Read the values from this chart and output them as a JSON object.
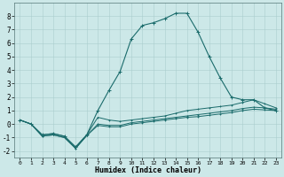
{
  "xlabel": "Humidex (Indice chaleur)",
  "x_values": [
    0,
    1,
    2,
    3,
    4,
    5,
    6,
    7,
    8,
    9,
    10,
    11,
    12,
    13,
    14,
    15,
    16,
    17,
    18,
    19,
    20,
    21,
    22,
    23
  ],
  "line_main": [
    0.3,
    0.0,
    -0.8,
    -0.7,
    -0.9,
    -1.7,
    -0.8,
    1.0,
    2.5,
    3.9,
    6.3,
    7.3,
    7.5,
    7.8,
    8.2,
    8.2,
    6.8,
    5.0,
    3.4,
    2.0,
    1.8,
    1.8,
    1.2,
    1.0
  ],
  "line_upper": [
    0.3,
    0.0,
    -0.8,
    -0.7,
    -0.9,
    -1.7,
    -0.8,
    0.5,
    0.3,
    0.2,
    0.3,
    0.4,
    0.5,
    0.6,
    0.8,
    1.0,
    1.1,
    1.2,
    1.3,
    1.4,
    1.6,
    1.8,
    1.5,
    1.2
  ],
  "line_mid1": [
    0.3,
    0.0,
    -0.9,
    -0.8,
    -1.0,
    -1.8,
    -0.85,
    0.0,
    -0.1,
    -0.1,
    0.1,
    0.2,
    0.3,
    0.4,
    0.5,
    0.6,
    0.7,
    0.8,
    0.9,
    1.0,
    1.15,
    1.25,
    1.2,
    1.1
  ],
  "line_mid2": [
    0.3,
    0.0,
    -0.9,
    -0.8,
    -1.0,
    -1.8,
    -0.85,
    -0.1,
    -0.2,
    -0.2,
    0.0,
    0.1,
    0.2,
    0.3,
    0.4,
    0.5,
    0.55,
    0.65,
    0.75,
    0.85,
    1.0,
    1.1,
    1.05,
    1.0
  ],
  "line_color": "#1a6b6b",
  "bg_color": "#cce8e8",
  "grid_color": "#aacece",
  "ylim": [
    -2.5,
    9.0
  ],
  "yticks": [
    -2,
    -1,
    0,
    1,
    2,
    3,
    4,
    5,
    6,
    7,
    8
  ],
  "xlim": [
    -0.5,
    23.5
  ],
  "tick_fontsize": 5.5,
  "xlabel_fontsize": 6.0
}
